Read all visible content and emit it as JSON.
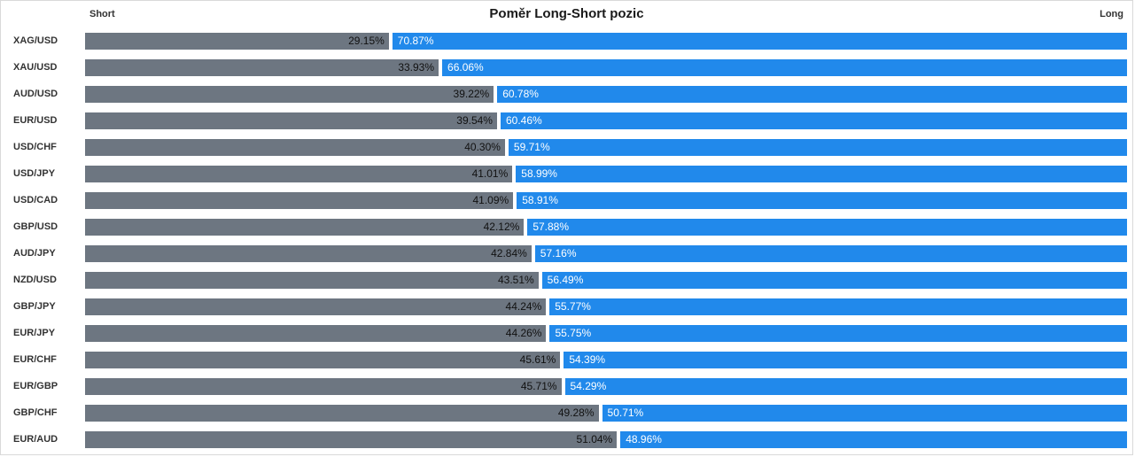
{
  "chart_data": {
    "type": "bar",
    "title": "Poměr Long-Short pozic",
    "orientation": "horizontal",
    "left_header": "Short",
    "right_header": "Long",
    "legend_position": "none",
    "grid": false,
    "colors": {
      "short_bar": "#6d7681",
      "long_bar": "#2189eb",
      "short_text": "#111111",
      "long_text": "#ffffff"
    },
    "categories": [
      "XAG/USD",
      "XAU/USD",
      "AUD/USD",
      "EUR/USD",
      "USD/CHF",
      "USD/JPY",
      "USD/CAD",
      "GBP/USD",
      "AUD/JPY",
      "NZD/USD",
      "GBP/JPY",
      "EUR/JPY",
      "EUR/CHF",
      "EUR/GBP",
      "GBP/CHF",
      "EUR/AUD"
    ],
    "series": [
      {
        "name": "Short",
        "values": [
          29.15,
          33.93,
          39.22,
          39.54,
          40.3,
          41.01,
          41.09,
          42.12,
          42.84,
          43.51,
          44.24,
          44.26,
          45.61,
          45.71,
          49.28,
          51.04
        ],
        "labels": [
          "29.15%",
          "33.93%",
          "39.22%",
          "39.54%",
          "40.30%",
          "41.01%",
          "41.09%",
          "42.12%",
          "42.84%",
          "43.51%",
          "44.24%",
          "44.26%",
          "45.61%",
          "45.71%",
          "49.28%",
          "51.04%"
        ]
      },
      {
        "name": "Long",
        "values": [
          70.87,
          66.06,
          60.78,
          60.46,
          59.71,
          58.99,
          58.91,
          57.88,
          57.16,
          56.49,
          55.77,
          55.75,
          54.39,
          54.29,
          50.71,
          48.96
        ],
        "labels": [
          "70.87%",
          "66.06%",
          "60.78%",
          "60.46%",
          "59.71%",
          "58.99%",
          "58.91%",
          "57.88%",
          "57.16%",
          "56.49%",
          "55.77%",
          "55.75%",
          "54.39%",
          "54.29%",
          "50.71%",
          "48.96%"
        ]
      }
    ],
    "xlim": [
      0,
      100
    ]
  }
}
